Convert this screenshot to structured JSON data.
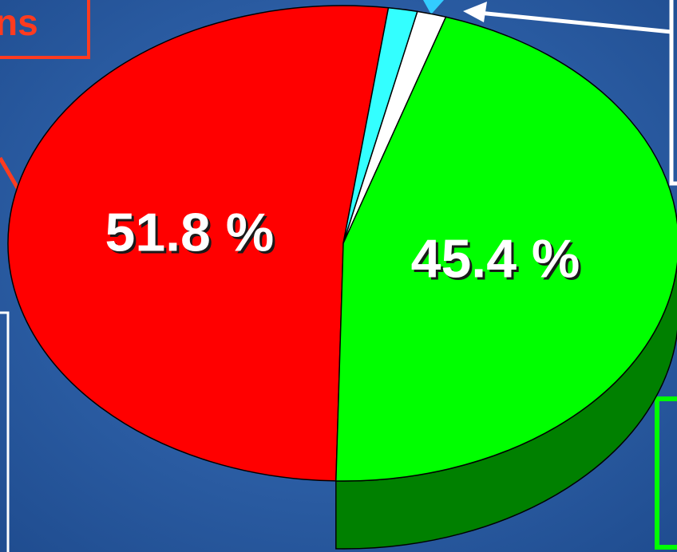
{
  "chart_data": {
    "type": "pie",
    "slices": [
      {
        "label_text": "51.8 %",
        "value": 51.8,
        "color": "#ff0000",
        "side_color": "#800000"
      },
      {
        "label_text": "",
        "value": 1.4,
        "color": "#33ffff",
        "side_color": "#1a8080"
      },
      {
        "label_text": "",
        "value": 1.4,
        "color": "#ffffff",
        "side_color": "#808080"
      },
      {
        "label_text": "45.4 %",
        "value": 45.4,
        "color": "#00ff00",
        "side_color": "#008000"
      }
    ]
  },
  "callouts": {
    "red_label": "ns",
    "red_color": "#ff3b1f",
    "white_color": "#ffffff",
    "green_color": "#00ff00",
    "cyan_color": "#33ccff"
  },
  "background_color": "#2a5da6"
}
